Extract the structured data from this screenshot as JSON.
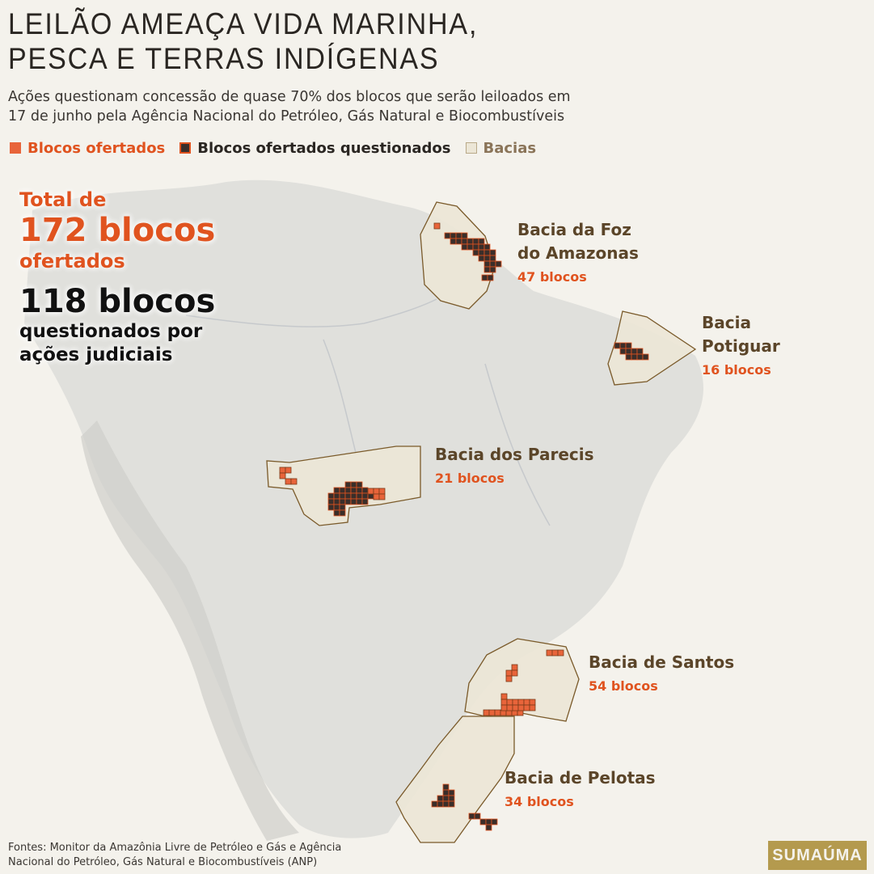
{
  "title": [
    "LEILÃO AMEAÇA VIDA MARINHA,",
    "PESCA E TERRAS INDÍGENAS"
  ],
  "subtitle": [
    "Ações questionam concessão de quase 70% dos blocos que serão leiloados em",
    "17 de junho pela Agência Nacional do Petróleo, Gás Natural e Biocombustíveis"
  ],
  "legend": [
    "Blocos ofertados",
    "Blocos ofertados questionados",
    "Bacias"
  ],
  "summary": {
    "total_prefix": "Total de",
    "total": "172 blocos",
    "total_suffix": "ofertados",
    "questioned": "118 blocos",
    "questioned_suffix": [
      "questionados por",
      "ações judiciais"
    ]
  },
  "basins": [
    {
      "name": [
        "Bacia da Foz",
        "do Amazonas"
      ],
      "count": "47 blocos"
    },
    {
      "name": [
        "Bacia",
        "Potiguar"
      ],
      "count": "16 blocos"
    },
    {
      "name": [
        "Bacia dos Parecis"
      ],
      "count": "21 blocos"
    },
    {
      "name": [
        "Bacia de Santos"
      ],
      "count": "54 blocos"
    },
    {
      "name": [
        "Bacia de Pelotas"
      ],
      "count": "34 blocos"
    }
  ],
  "source": [
    "Fontes: Monitor da Amazônia Livre de Petróleo e Gás e Agência",
    "Nacional do Petróleo, Gás Natural e Biocombustíveis (ANP)"
  ],
  "logo": "SUMAÚMA"
}
